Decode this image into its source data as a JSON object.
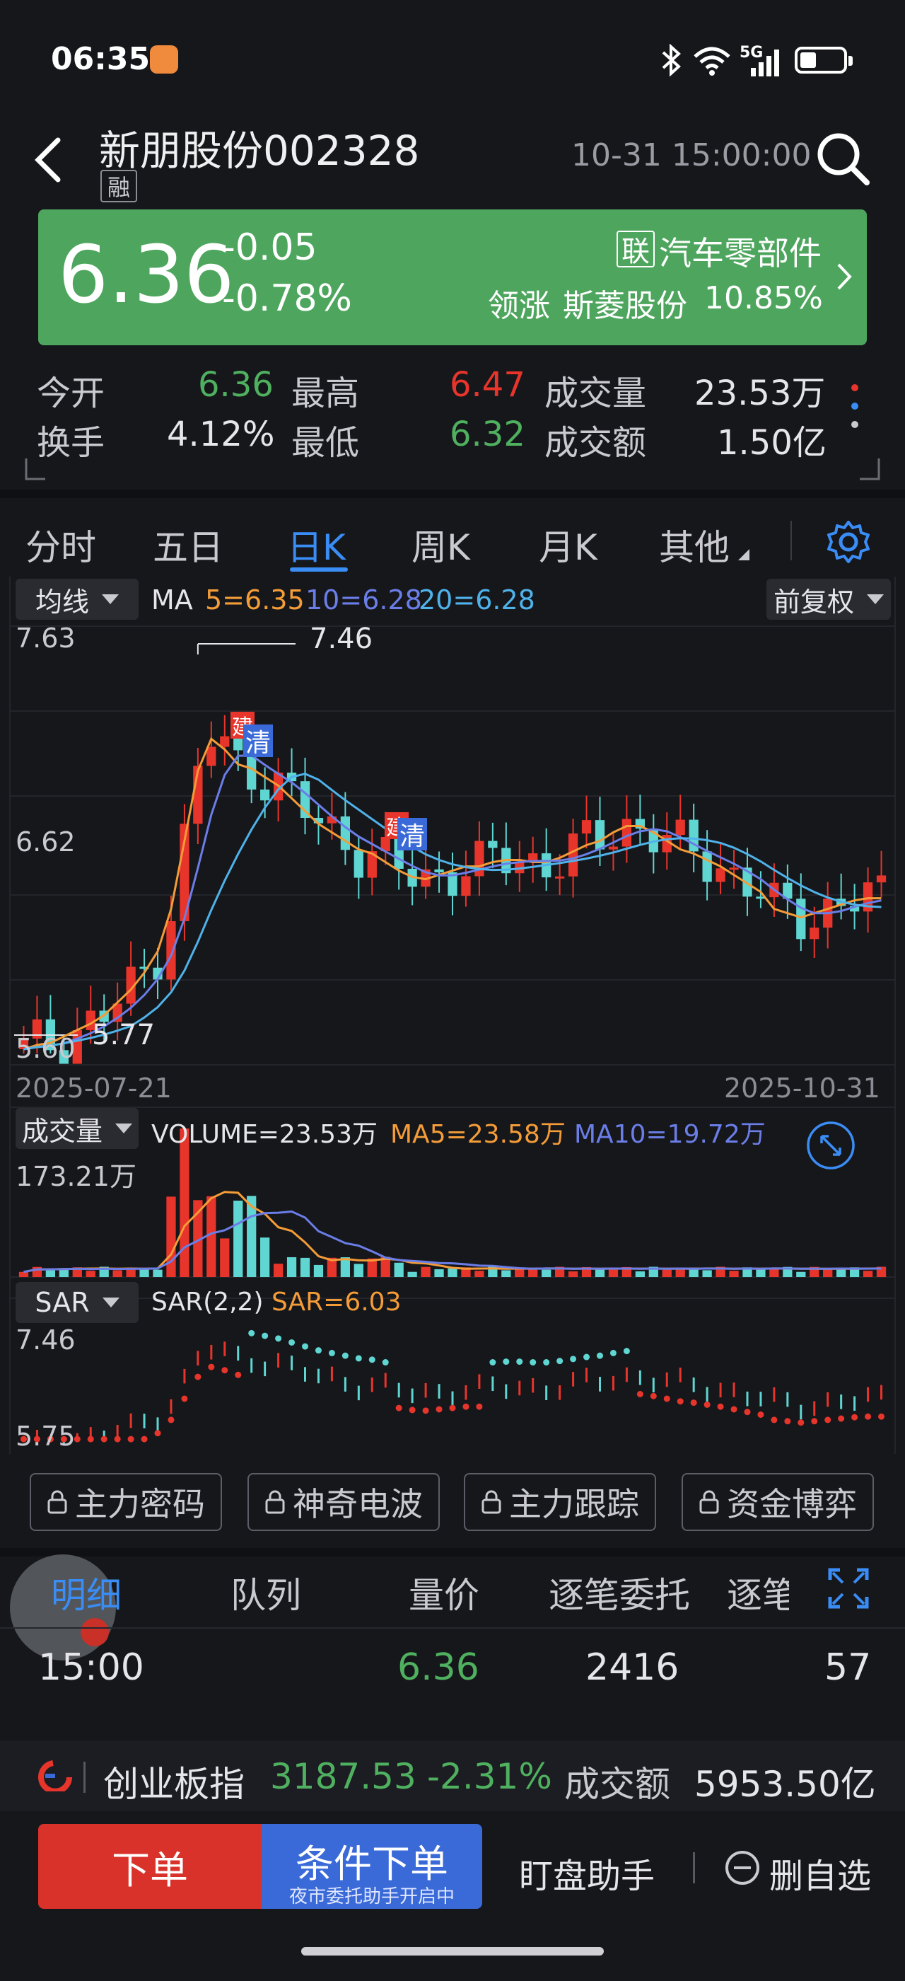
{
  "status_bar": {
    "time": "06:35",
    "network": "5G",
    "battery_icon": "battery-icon"
  },
  "header": {
    "title": "新朋股份002328",
    "tag": "融",
    "datetime": "10-31 15:00:00"
  },
  "price": {
    "last": "6.36",
    "change": "-0.05",
    "change_pct": "-0.78%",
    "sector_tag": "联",
    "sector": "汽车零部件",
    "leader_label": "领涨",
    "leader_name": "斯菱股份",
    "leader_pct": "10.85%"
  },
  "stats": {
    "open_label": "今开",
    "open": "6.36",
    "high_label": "最高",
    "high": "6.47",
    "volume_label": "成交量",
    "volume": "23.53万",
    "turnover_label": "换手",
    "turnover": "4.12%",
    "low_label": "最低",
    "low": "6.32",
    "amount_label": "成交额",
    "amount": "1.50亿"
  },
  "tabs": [
    "分时",
    "五日",
    "日K",
    "周K",
    "月K",
    "其他"
  ],
  "active_tab": "日K",
  "kline": {
    "indicator_dropdown": "均线",
    "ma_label": "MA",
    "ma5": "5=6.35",
    "ma10": "10=6.28",
    "ma20": "20=6.28",
    "adjust_dropdown": "前复权",
    "price_top": "7.63",
    "price_mid": "6.62",
    "price_bottom": "5.60",
    "high_marker": "7.46",
    "low_marker": "5.77",
    "date_start": "2025-07-21",
    "date_end": "2025-10-31",
    "tag_jian": "建",
    "tag_qing": "清"
  },
  "volume_panel": {
    "dropdown": "成交量",
    "volume": "VOLUME=23.53万",
    "ma5": "MA5=23.58万",
    "ma10": "MA10=19.72万",
    "top": "173.21万"
  },
  "sar_panel": {
    "dropdown": "SAR",
    "params": "SAR(2,2)",
    "value": "SAR=6.03",
    "top": "7.46",
    "bottom": "5.75"
  },
  "feature_buttons": [
    "主力密码",
    "神奇电波",
    "主力跟踪",
    "资金博弈"
  ],
  "detail_tabs": [
    "明细",
    "队列",
    "量价",
    "逐笔委托",
    "逐笔"
  ],
  "detail_row": {
    "time": "15:00",
    "price": "6.36",
    "volume": "2416",
    "count": "57"
  },
  "index_bar": {
    "name": "创业板指",
    "value": "3187.53",
    "change_pct": "-2.31%",
    "amount_label": "成交额",
    "amount": "5953.50亿"
  },
  "bottom": {
    "order": "下单",
    "cond_order": "条件下单",
    "cond_sub": "夜市委托助手开启中",
    "assistant": "盯盘助手",
    "remove": "删自选"
  },
  "colors": {
    "up": "#e8352b",
    "down": "#4fb05f",
    "accent": "#3a8df5",
    "price_bg": "#4ea65e"
  },
  "chart_data": {
    "type": "candlestick",
    "ma5": [
      5.64,
      5.66,
      5.67,
      5.7,
      5.73,
      5.76,
      5.8,
      5.86,
      5.92,
      6.0,
      6.1,
      6.3,
      6.62,
      6.95,
      7.1,
      7.05,
      6.98,
      6.96,
      6.92,
      6.88,
      6.82,
      6.76,
      6.7,
      6.66,
      6.62,
      6.58,
      6.56,
      6.52,
      6.48,
      6.45,
      6.44,
      6.46,
      6.48,
      6.5,
      6.5,
      6.52,
      6.53,
      6.53,
      6.52,
      6.52,
      6.54,
      6.57,
      6.6,
      6.62,
      6.66,
      6.69,
      6.69,
      6.66,
      6.62,
      6.58,
      6.56,
      6.53,
      6.5,
      6.46,
      6.42,
      6.38,
      6.3,
      6.28,
      6.26,
      6.28,
      6.3,
      6.32,
      6.34,
      6.35,
      6.35
    ],
    "volume_units": "万",
    "volume_ylim_top": 173.21
  }
}
